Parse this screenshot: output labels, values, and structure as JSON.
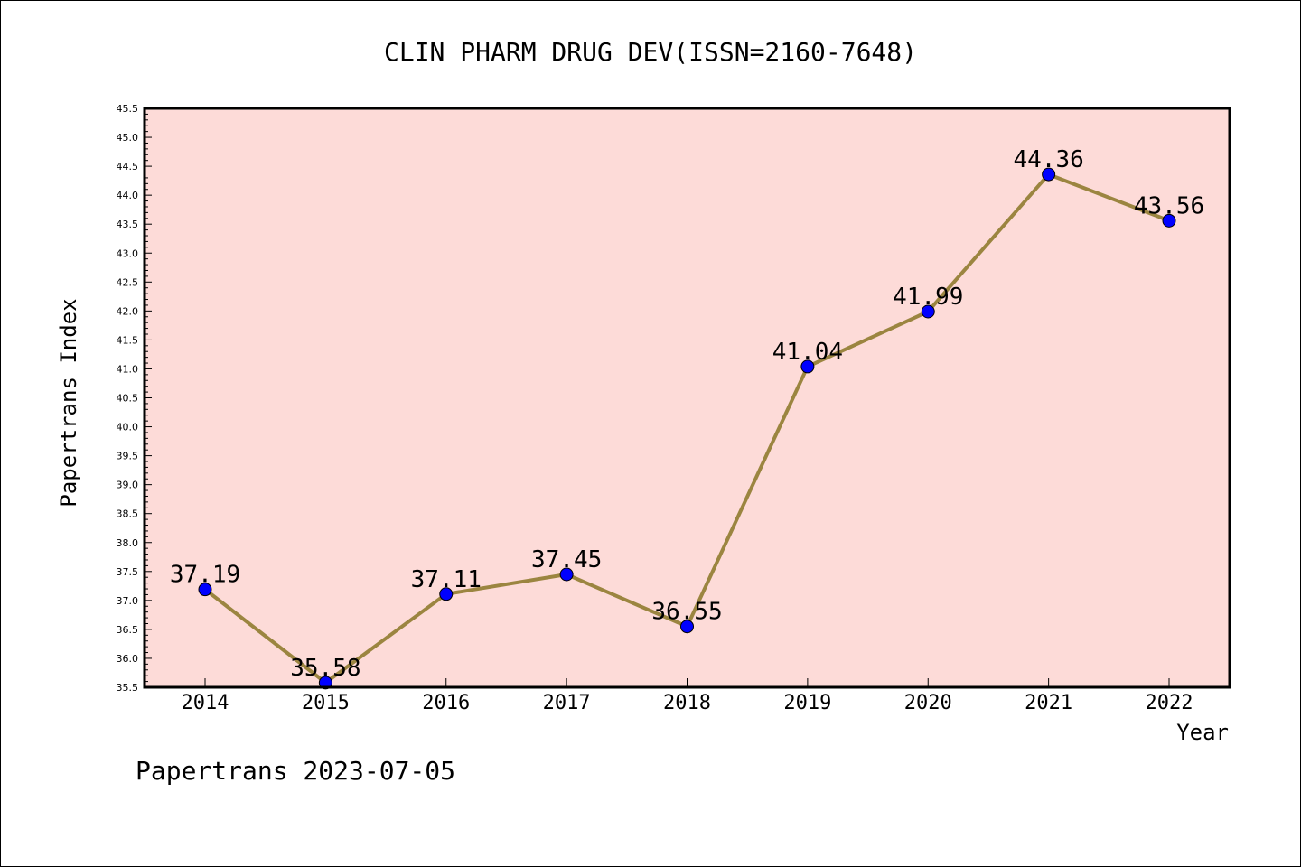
{
  "chart_data": {
    "type": "line",
    "title": "CLIN PHARM DRUG DEV(ISSN=2160-7648)",
    "xlabel": "Year",
    "ylabel": "Papertrans Index",
    "footer": "Papertrans 2023-07-05",
    "categories": [
      "2014",
      "2015",
      "2016",
      "2017",
      "2018",
      "2019",
      "2020",
      "2021",
      "2022"
    ],
    "series": [
      {
        "values": [
          37.19,
          35.58,
          37.11,
          37.45,
          36.55,
          41.04,
          41.99,
          44.36,
          43.56
        ],
        "labels": [
          "37.19",
          "35.58",
          "37.11",
          "37.45",
          "36.55",
          "41.04",
          "41.99",
          "44.36",
          "43.56"
        ],
        "line_color": "#9b8540",
        "marker_color": "#0000ff"
      }
    ],
    "ylim": [
      35.5,
      45.5
    ],
    "yticks": [
      "35.5",
      "36.0",
      "36.5",
      "37.0",
      "37.5",
      "38.0",
      "38.5",
      "39.0",
      "39.5",
      "40.0",
      "40.5",
      "41.0",
      "41.5",
      "42.0",
      "42.5",
      "43.0",
      "43.5",
      "44.0",
      "44.5",
      "45.0",
      "45.5"
    ],
    "plot_background": "#fddbd8",
    "grid": false,
    "legend": "none"
  }
}
